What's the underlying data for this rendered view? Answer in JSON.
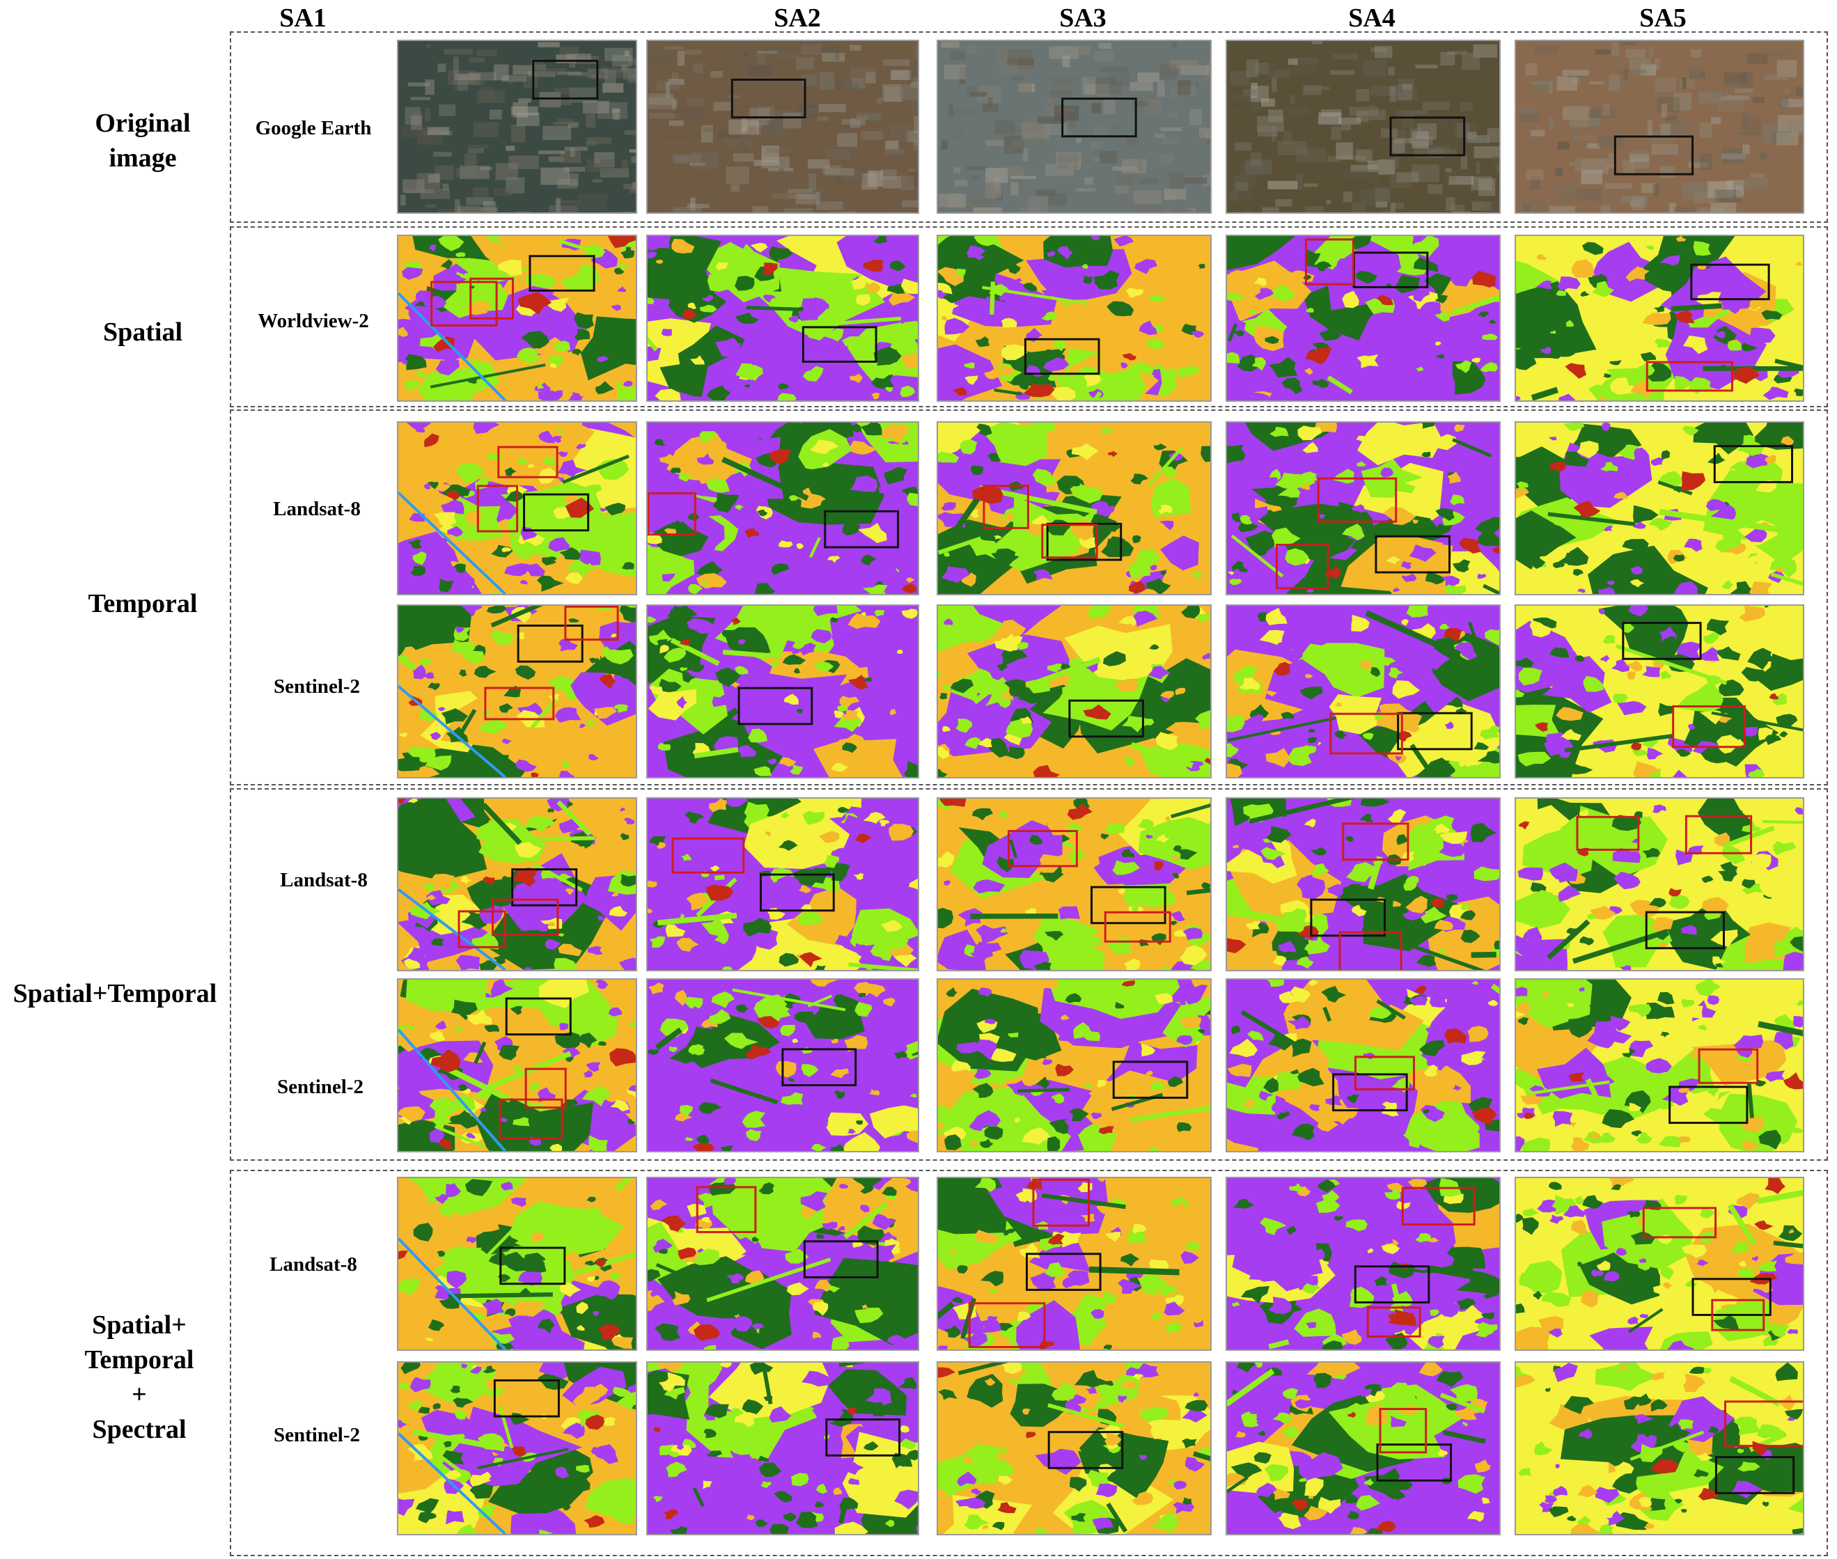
{
  "figure": {
    "columns": [
      "SA1",
      "SA2",
      "SA3",
      "SA4",
      "SA5"
    ],
    "groups": [
      {
        "id": "original",
        "label": "Original image",
        "rows": [
          {
            "label": "Google Earth",
            "kind": "photo"
          }
        ]
      },
      {
        "id": "spatial",
        "label": "Spatial",
        "rows": [
          {
            "label": "Worldview-2",
            "kind": "map"
          }
        ]
      },
      {
        "id": "temporal",
        "label": "Temporal",
        "rows": [
          {
            "label": "Landsat-8",
            "kind": "map"
          },
          {
            "label": "Sentinel-2",
            "kind": "map"
          }
        ]
      },
      {
        "id": "spatial-temporal",
        "label": "Spatial+Temporal",
        "rows": [
          {
            "label": "Landsat-8",
            "kind": "map"
          },
          {
            "label": "Sentinel-2",
            "kind": "map"
          }
        ]
      },
      {
        "id": "spatial-temporal-spectral",
        "label": "Spatial+ Temporal + Spectral",
        "label_lines": [
          "Spatial+",
          "Temporal",
          "+",
          "Spectral"
        ],
        "rows": [
          {
            "label": "Landsat-8",
            "kind": "map"
          },
          {
            "label": "Sentinel-2",
            "kind": "map"
          }
        ]
      }
    ]
  },
  "colors": {
    "class_orange": "#f5b82a",
    "class_purple": "#a63df0",
    "class_darkgreen": "#1f6e1c",
    "class_lightgreen": "#94ef1c",
    "class_yellow": "#f4f23c",
    "class_red": "#c42a16",
    "class_blue": "#2f9cf0",
    "box_black": "#111111",
    "box_red": "#cc1e1e",
    "photo_sa1": "#3c4a44",
    "photo_sa2": "#6f5a44",
    "photo_sa3": "#6a7472",
    "photo_sa4": "#5a5038",
    "photo_sa5": "#8a6a4e"
  }
}
